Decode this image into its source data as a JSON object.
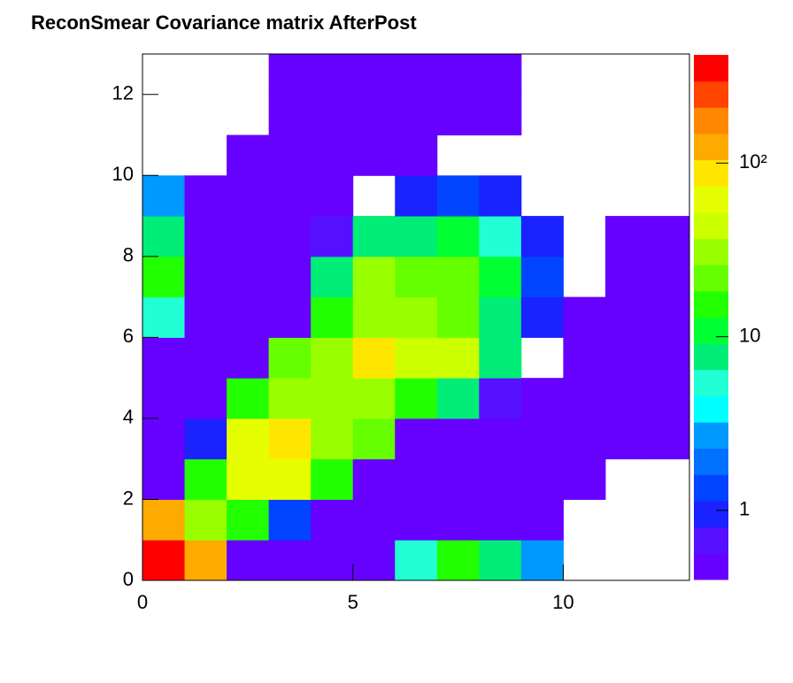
{
  "chart_data": {
    "type": "heatmap",
    "title": "ReconSmear Covariance matrix AfterPost",
    "xlim": [
      0,
      13
    ],
    "ylim": [
      0,
      13
    ],
    "xticks": [
      0,
      5,
      10
    ],
    "yticks": [
      0,
      2,
      4,
      6,
      8,
      10,
      12
    ],
    "zlog": true,
    "zlim": [
      0.4,
      420
    ],
    "zticks": [
      1,
      10,
      {
        "value": 100,
        "label": "10²"
      }
    ],
    "palette": [
      "#6600ff",
      "#5511ff",
      "#1a22ff",
      "#0044ff",
      "#0070ff",
      "#0099ff",
      "#00ffff",
      "#22ffd4",
      "#00ee77",
      "#00ff33",
      "#22ff00",
      "#66ff00",
      "#99ff00",
      "#ccff00",
      "#e6ff00",
      "#ffe600",
      "#ffaa00",
      "#ff8800",
      "#ff4400",
      "#ff0000"
    ],
    "z": [
      [
        350,
        120,
        0.5,
        0.5,
        0.5,
        0.5,
        5.4,
        15,
        7.7,
        2.3,
        null,
        null,
        null
      ],
      [
        110,
        31,
        15,
        1.35,
        0.5,
        0.5,
        0.5,
        0.5,
        0.5,
        0.5,
        null,
        null,
        null
      ],
      [
        0.5,
        15,
        62,
        62,
        15,
        0.5,
        0.5,
        0.5,
        0.5,
        0.5,
        0.5,
        null,
        null
      ],
      [
        0.5,
        1,
        62,
        100,
        35,
        22,
        0.5,
        0.5,
        0.5,
        0.5,
        0.5,
        0.5,
        0.5
      ],
      [
        0.5,
        0.5,
        15,
        31,
        31,
        31,
        15,
        8,
        0.67,
        0.5,
        0.5,
        0.5,
        0.5
      ],
      [
        0.5,
        0.5,
        0.5,
        22,
        35,
        100,
        44,
        44,
        8,
        null,
        0.5,
        0.5,
        0.5
      ],
      [
        5.4,
        0.5,
        0.5,
        0.5,
        13,
        35,
        35,
        22,
        8,
        1,
        0.5,
        0.5,
        0.5
      ],
      [
        15,
        0.5,
        0.5,
        0.5,
        8,
        31,
        22,
        22,
        11,
        1.35,
        null,
        0.5,
        0.5
      ],
      [
        8,
        0.5,
        0.5,
        0.5,
        0.67,
        8,
        8,
        11,
        5.4,
        1,
        null,
        0.5,
        0.5
      ],
      [
        2.7,
        0.5,
        0.5,
        0.5,
        0.5,
        null,
        1,
        1.35,
        1,
        null,
        null,
        null,
        null
      ],
      [
        null,
        null,
        0.5,
        0.5,
        0.5,
        0.5,
        0.5,
        null,
        null,
        null,
        null,
        null,
        null
      ],
      [
        null,
        null,
        null,
        0.5,
        0.5,
        0.5,
        0.5,
        0.5,
        0.5,
        null,
        null,
        null,
        null
      ],
      [
        null,
        null,
        null,
        0.5,
        0.5,
        0.5,
        0.5,
        0.5,
        0.5,
        null,
        null,
        null,
        null
      ]
    ]
  }
}
